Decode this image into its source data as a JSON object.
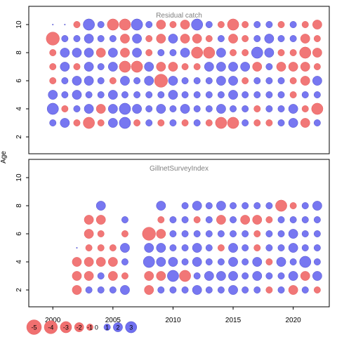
{
  "chart_data": {
    "type": "bubble",
    "x_axis_label": "Year",
    "y_axis_label": "Age",
    "x_ticks": [
      2000,
      2005,
      2010,
      2015,
      2020
    ],
    "y_ticks": [
      2,
      4,
      6,
      8,
      10
    ],
    "xlim": [
      1998,
      2023
    ],
    "ylim": [
      0.8,
      11.3
    ],
    "colors": {
      "positive": "#7070f0",
      "negative": "#f07070",
      "outline": "#4040c0",
      "outline_neg": "#e05050"
    },
    "panels": [
      {
        "title": "Residual catch",
        "ages": [
          3,
          4,
          5,
          6,
          7,
          8,
          9,
          10
        ],
        "years": [
          2000,
          2001,
          2002,
          2003,
          2004,
          2005,
          2006,
          2007,
          2008,
          2009,
          2010,
          2011,
          2012,
          2013,
          2014,
          2015,
          2016,
          2017,
          2018,
          2019,
          2020,
          2021,
          2022
        ],
        "residuals": [
          [
            1,
            2,
            -1,
            -3,
            -1,
            2,
            3,
            -1,
            1,
            -1,
            1,
            -1,
            1,
            -1,
            -3,
            -3,
            1,
            -1,
            -1,
            1,
            2,
            -2,
            1
          ],
          [
            3,
            -1,
            1,
            2,
            -2,
            2,
            3,
            2,
            1,
            2,
            1,
            2,
            1,
            1,
            2,
            1,
            1,
            -1,
            1,
            1,
            2,
            -1,
            -3
          ],
          [
            2,
            1,
            2,
            1,
            1,
            2,
            1,
            1,
            1,
            1,
            2,
            1,
            1,
            1,
            1,
            2,
            1,
            1,
            1,
            1,
            -1,
            1,
            1
          ],
          [
            -1,
            1,
            2,
            2,
            1,
            -1,
            2,
            1,
            2,
            -4,
            2,
            1,
            1,
            1,
            2,
            2,
            -1,
            1,
            1,
            1,
            -1,
            -2,
            2
          ],
          [
            -1,
            2,
            -1,
            2,
            1,
            2,
            -3,
            -3,
            2,
            -2,
            -2,
            -1,
            -1,
            2,
            2,
            2,
            2,
            -2,
            1,
            -2,
            -2,
            -2,
            -1
          ],
          [
            -1,
            2,
            2,
            2,
            -2,
            2,
            -2,
            2,
            -1,
            1,
            1,
            2,
            -3,
            -3,
            2,
            -1,
            -1,
            3,
            2,
            -1,
            -1,
            -3,
            -2
          ],
          [
            -4,
            1,
            1,
            2,
            1,
            1,
            -2,
            2,
            -1,
            -2,
            2,
            -2,
            -2,
            -1,
            1,
            -2,
            -1,
            1,
            2,
            1,
            1,
            -2,
            -1
          ],
          [
            0,
            0,
            -1,
            3,
            1,
            -3,
            -3,
            3,
            1,
            -2,
            -1,
            -2,
            3,
            1,
            -1,
            -3,
            -1,
            1,
            1,
            -1,
            1,
            -1,
            -2
          ]
        ]
      },
      {
        "title": "GillnetSurveyIndex",
        "ages": [
          2,
          3,
          4,
          5,
          6,
          7,
          8
        ],
        "years": [
          2002,
          2003,
          2004,
          2005,
          2006,
          2007,
          2008,
          2009,
          2010,
          2011,
          2012,
          2013,
          2014,
          2015,
          2016,
          2017,
          2018,
          2019,
          2020,
          2021,
          2022
        ],
        "residuals": [
          [
            -2,
            1,
            1,
            1,
            2,
            null,
            -2,
            1,
            1,
            1,
            2,
            1,
            1,
            2,
            1,
            1,
            -1,
            1,
            -2,
            1,
            -1
          ],
          [
            -2,
            -2,
            1,
            -2,
            -1,
            null,
            -2,
            -2,
            3,
            -3,
            1,
            2,
            2,
            2,
            1,
            2,
            1,
            1,
            2,
            -2,
            2
          ],
          [
            -2,
            -2,
            -2,
            -2,
            1,
            null,
            3,
            2,
            2,
            1,
            2,
            1,
            1,
            2,
            1,
            2,
            -1,
            2,
            1,
            3,
            1
          ],
          [
            0,
            -1,
            -1,
            -1,
            2,
            null,
            2,
            2,
            1,
            1,
            2,
            1,
            -1,
            2,
            1,
            -1,
            1,
            1,
            2,
            1,
            1
          ],
          [
            null,
            -2,
            -1,
            null,
            -1,
            null,
            -4,
            -2,
            1,
            1,
            1,
            1,
            1,
            1,
            1,
            -1,
            1,
            1,
            2,
            1,
            1
          ],
          [
            null,
            -2,
            -2,
            null,
            1,
            null,
            null,
            -1,
            1,
            1,
            -1,
            1,
            -2,
            1,
            -2,
            -2,
            -1,
            1,
            1,
            1,
            1
          ],
          [
            null,
            null,
            2,
            null,
            null,
            null,
            null,
            2,
            null,
            1,
            2,
            1,
            2,
            1,
            1,
            1,
            1,
            -3,
            -1,
            1,
            2
          ]
        ]
      }
    ],
    "legend": {
      "values": [
        -5,
        -4,
        -3,
        -2,
        -1,
        0,
        1,
        2,
        3
      ],
      "labels": [
        "-5",
        "-4",
        "-3",
        "-2",
        "-1",
        "0",
        "1",
        "2",
        "3"
      ]
    }
  }
}
